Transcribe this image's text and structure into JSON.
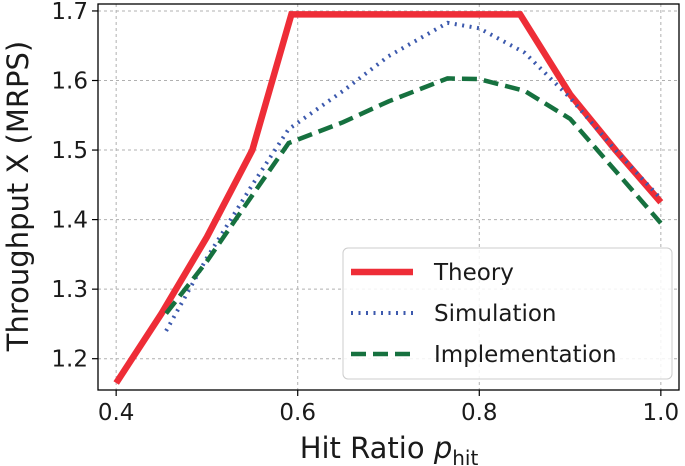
{
  "chart_data": {
    "type": "line",
    "xlabel": "Hit Ratio ",
    "xlabel_symbol": "p",
    "xlabel_subscript": "hit",
    "ylabel": "Throughput X (MRPS)",
    "xlim": [
      0.38,
      1.02
    ],
    "ylim": [
      1.155,
      1.71
    ],
    "xticks": [
      0.4,
      0.6,
      0.8,
      1.0
    ],
    "xtick_labels": [
      "0.4",
      "0.6",
      "0.8",
      "1.0"
    ],
    "yticks": [
      1.2,
      1.3,
      1.4,
      1.5,
      1.6,
      1.7
    ],
    "ytick_labels": [
      "1.2",
      "1.3",
      "1.4",
      "1.5",
      "1.6",
      "1.7"
    ],
    "grid": true,
    "legend_position": "lower-right",
    "series": [
      {
        "name": "Theory",
        "color": "#ee2d37",
        "style": "solid",
        "x": [
          0.4,
          0.45,
          0.5,
          0.55,
          0.593,
          0.65,
          0.7,
          0.75,
          0.8,
          0.845,
          0.9,
          0.95,
          1.0
        ],
        "y": [
          1.165,
          1.265,
          1.375,
          1.5,
          1.695,
          1.695,
          1.695,
          1.695,
          1.695,
          1.695,
          1.58,
          1.5,
          1.425
        ]
      },
      {
        "name": "Simulation",
        "color": "#3c59ad",
        "style": "dotted",
        "x": [
          0.455,
          0.5,
          0.55,
          0.59,
          0.65,
          0.7,
          0.765,
          0.8,
          0.85,
          0.9,
          0.95,
          1.0
        ],
        "y": [
          1.24,
          1.345,
          1.45,
          1.53,
          1.585,
          1.635,
          1.683,
          1.675,
          1.64,
          1.575,
          1.5,
          1.43
        ]
      },
      {
        "name": "Implementation",
        "color": "#16713f",
        "style": "dashed",
        "x": [
          0.455,
          0.5,
          0.55,
          0.59,
          0.65,
          0.7,
          0.765,
          0.8,
          0.85,
          0.9,
          0.95,
          1.0
        ],
        "y": [
          1.265,
          1.34,
          1.435,
          1.51,
          1.54,
          1.57,
          1.603,
          1.602,
          1.585,
          1.545,
          1.47,
          1.395
        ]
      }
    ]
  }
}
